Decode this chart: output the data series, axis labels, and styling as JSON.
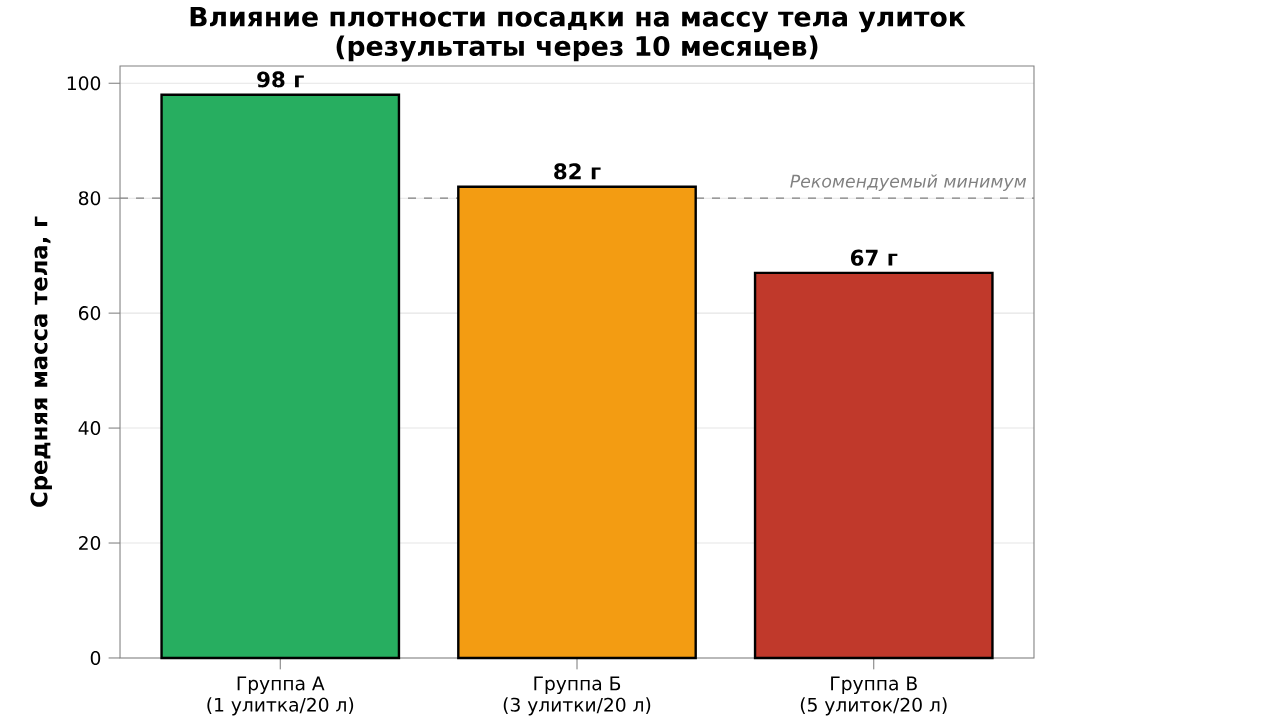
{
  "chart_data": {
    "type": "bar",
    "title": "Влияние плотности посадки на массу тела улиток\n(результаты через 10 месяцев)",
    "ylabel": "Средняя масса тела, г",
    "categories": [
      "Группа А\n(1 улитка/20 л)",
      "Группа Б\n(3 улитки/20 л)",
      "Группа В\n(5 улиток/20 л)"
    ],
    "values": [
      98,
      82,
      67
    ],
    "colors": [
      "#27ae60",
      "#f39c12",
      "#c0392b"
    ],
    "value_labels": [
      "98 г",
      "82 г",
      "67 г"
    ],
    "ylim": [
      0,
      103
    ],
    "yticks": [
      0,
      20,
      40,
      60,
      80,
      100
    ],
    "grid": "y",
    "ref_lines": [
      {
        "axis": "y",
        "value": 80,
        "label": "Рекомендуемый минимум",
        "color": "#808080",
        "line_style": "dashed"
      }
    ]
  }
}
